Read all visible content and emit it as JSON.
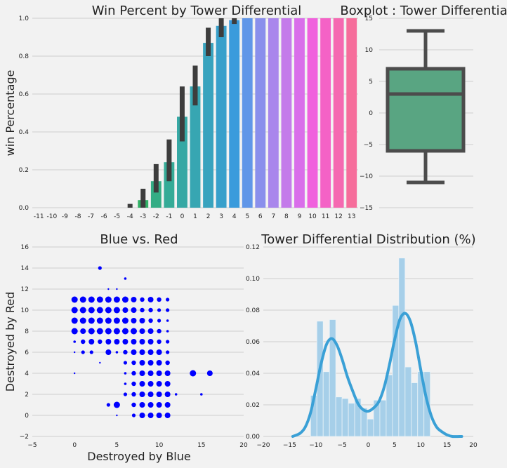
{
  "chart_data": [
    {
      "id": "win_bar",
      "type": "bar",
      "title": "Win Percent by Tower Differential",
      "xlabel": "",
      "ylabel": "win Percentage",
      "ylim": [
        0,
        1.0
      ],
      "yticks": [
        "0.0",
        "0.2",
        "0.4",
        "0.6",
        "0.8",
        "1.0"
      ],
      "categories": [
        "-11",
        "-10",
        "-9",
        "-8",
        "-7",
        "-6",
        "-5",
        "-4",
        "-3",
        "-2",
        "-1",
        "0",
        "1",
        "2",
        "3",
        "4",
        "5",
        "6",
        "7",
        "8",
        "9",
        "10",
        "11",
        "12",
        "13"
      ],
      "values": [
        0,
        0,
        0,
        0,
        0,
        0,
        0,
        0.0,
        0.04,
        0.14,
        0.24,
        0.48,
        0.64,
        0.87,
        0.96,
        0.99,
        1.0,
        1.0,
        1.0,
        1.0,
        1.0,
        1.0,
        1.0,
        1.0,
        1.0
      ],
      "ci_low": [
        null,
        null,
        null,
        null,
        null,
        null,
        null,
        0.0,
        0.0,
        0.08,
        0.14,
        0.35,
        0.54,
        0.8,
        0.9,
        0.97,
        null,
        null,
        null,
        null,
        null,
        null,
        null,
        null,
        null
      ],
      "ci_high": [
        null,
        null,
        null,
        null,
        null,
        null,
        null,
        0.02,
        0.1,
        0.23,
        0.36,
        0.64,
        0.75,
        0.95,
        1.0,
        1.0,
        null,
        null,
        null,
        null,
        null,
        null,
        null,
        null,
        null
      ],
      "colors": [
        "#f77189",
        "#f67b4b",
        "#e28c31",
        "#cb962f",
        "#b59d31",
        "#9ea631",
        "#7eae31",
        "#3fb634",
        "#32b166",
        "#34ad85",
        "#35ab97",
        "#36a8a4",
        "#37a6b2",
        "#38a3be",
        "#38a0cb",
        "#3a9bdc",
        "#6096e8",
        "#8a8fec",
        "#a986ec",
        "#c47bea",
        "#d96eea",
        "#f061dd",
        "#f462c6",
        "#f569b1",
        "#f66d9b"
      ],
      "grid": true
    },
    {
      "id": "boxplot",
      "type": "box",
      "title": "Boxplot : Tower Differential",
      "ylim": [
        -15,
        15
      ],
      "yticks": [
        "−15",
        "−10",
        "−5",
        "0",
        "5",
        "10",
        "15"
      ],
      "whisker_low": -11,
      "q1": -6,
      "median": 3,
      "q3": 7,
      "whisker_high": 13,
      "color": "#59a582",
      "grid": true
    },
    {
      "id": "scatter",
      "type": "scatter",
      "title": "Blue vs. Red",
      "xlabel": "Destroyed by Blue",
      "ylabel": "Destroyed by Red",
      "xlim": [
        -5,
        20
      ],
      "ylim": [
        -2,
        16
      ],
      "xticks": [
        "−5",
        "0",
        "5",
        "10",
        "15",
        "20"
      ],
      "yticks": [
        "−2",
        "0",
        "2",
        "4",
        "6",
        "8",
        "10",
        "12",
        "14",
        "16"
      ],
      "color": "#0000ff",
      "grid": true,
      "points": [
        [
          0,
          11,
          6
        ],
        [
          1,
          11,
          6
        ],
        [
          2,
          11,
          6
        ],
        [
          3,
          11,
          6
        ],
        [
          4,
          11,
          6
        ],
        [
          5,
          11,
          6
        ],
        [
          6,
          11,
          6
        ],
        [
          7,
          11,
          5
        ],
        [
          8,
          11,
          4
        ],
        [
          9,
          11,
          5
        ],
        [
          10,
          11,
          4
        ],
        [
          11,
          11,
          3
        ],
        [
          0,
          10,
          6
        ],
        [
          1,
          10,
          6
        ],
        [
          2,
          10,
          6
        ],
        [
          3,
          10,
          6
        ],
        [
          4,
          10,
          6
        ],
        [
          5,
          10,
          6
        ],
        [
          6,
          10,
          5
        ],
        [
          7,
          10,
          5
        ],
        [
          8,
          10,
          4
        ],
        [
          9,
          10,
          4
        ],
        [
          10,
          10,
          3
        ],
        [
          11,
          10,
          3
        ],
        [
          0,
          9,
          6
        ],
        [
          1,
          9,
          6
        ],
        [
          2,
          9,
          6
        ],
        [
          3,
          9,
          6
        ],
        [
          4,
          9,
          6
        ],
        [
          5,
          9,
          6
        ],
        [
          6,
          9,
          6
        ],
        [
          7,
          9,
          5
        ],
        [
          8,
          9,
          5
        ],
        [
          9,
          9,
          4
        ],
        [
          10,
          9,
          3
        ],
        [
          11,
          9,
          2
        ],
        [
          0,
          8,
          6
        ],
        [
          1,
          8,
          5
        ],
        [
          2,
          8,
          6
        ],
        [
          3,
          8,
          6
        ],
        [
          4,
          8,
          6
        ],
        [
          5,
          8,
          6
        ],
        [
          6,
          8,
          6
        ],
        [
          7,
          8,
          6
        ],
        [
          8,
          8,
          5
        ],
        [
          9,
          8,
          5
        ],
        [
          10,
          8,
          4
        ],
        [
          11,
          8,
          2
        ],
        [
          0,
          7,
          2
        ],
        [
          1,
          7,
          4
        ],
        [
          2,
          7,
          5
        ],
        [
          3,
          7,
          4
        ],
        [
          4,
          7,
          5
        ],
        [
          5,
          7,
          5
        ],
        [
          6,
          7,
          5
        ],
        [
          7,
          7,
          5
        ],
        [
          8,
          7,
          5
        ],
        [
          9,
          7,
          5
        ],
        [
          10,
          7,
          4
        ],
        [
          11,
          7,
          3
        ],
        [
          0,
          6,
          1
        ],
        [
          1,
          6,
          3
        ],
        [
          2,
          6,
          3
        ],
        [
          4,
          6,
          5
        ],
        [
          5,
          6,
          2
        ],
        [
          6,
          6,
          4
        ],
        [
          7,
          6,
          5
        ],
        [
          8,
          6,
          5
        ],
        [
          9,
          6,
          5
        ],
        [
          10,
          6,
          5
        ],
        [
          11,
          6,
          3
        ],
        [
          3,
          5,
          1
        ],
        [
          6,
          5,
          3
        ],
        [
          7,
          5,
          4
        ],
        [
          8,
          5,
          5
        ],
        [
          9,
          5,
          5
        ],
        [
          10,
          5,
          5
        ],
        [
          11,
          5,
          4
        ],
        [
          0,
          4,
          1
        ],
        [
          6,
          4,
          2
        ],
        [
          7,
          4,
          4
        ],
        [
          8,
          4,
          5
        ],
        [
          9,
          4,
          5
        ],
        [
          10,
          4,
          5
        ],
        [
          11,
          4,
          5
        ],
        [
          14,
          4,
          6
        ],
        [
          16,
          4,
          5
        ],
        [
          6,
          3,
          2
        ],
        [
          7,
          3,
          4
        ],
        [
          8,
          3,
          5
        ],
        [
          9,
          3,
          5
        ],
        [
          10,
          3,
          5
        ],
        [
          11,
          3,
          5
        ],
        [
          6,
          2,
          3
        ],
        [
          7,
          2,
          4
        ],
        [
          8,
          2,
          5
        ],
        [
          9,
          2,
          5
        ],
        [
          10,
          2,
          5
        ],
        [
          11,
          2,
          5
        ],
        [
          12,
          2,
          2
        ],
        [
          15,
          2,
          2
        ],
        [
          4,
          1,
          3
        ],
        [
          5,
          1,
          6
        ],
        [
          7,
          1,
          4
        ],
        [
          8,
          1,
          5
        ],
        [
          9,
          1,
          5
        ],
        [
          10,
          1,
          5
        ],
        [
          11,
          1,
          5
        ],
        [
          5,
          0,
          1
        ],
        [
          7,
          0,
          3
        ],
        [
          8,
          0,
          5
        ],
        [
          9,
          0,
          5
        ],
        [
          10,
          0,
          5
        ],
        [
          11,
          0,
          5
        ],
        [
          3,
          14,
          3
        ],
        [
          6,
          13,
          2
        ],
        [
          4,
          12,
          1
        ],
        [
          5,
          12,
          1
        ]
      ]
    },
    {
      "id": "dist",
      "type": "histogram",
      "title": "Tower Differential Distribution (%)",
      "xlim": [
        -20,
        20
      ],
      "ylim": [
        0,
        0.12
      ],
      "xticks": [
        "−20",
        "−15",
        "−10",
        "−5",
        "0",
        "5",
        "10",
        "15",
        "20"
      ],
      "yticks": [
        "0.00",
        "0.02",
        "0.04",
        "0.06",
        "0.08",
        "0.10",
        "0.12"
      ],
      "bin_edges": [
        -11,
        -9.8,
        -8.6,
        -7.4,
        -6.2,
        -5,
        -3.8,
        -2.6,
        -1.4,
        -0.2,
        1,
        2.2,
        3.4,
        4.6,
        5.8,
        7,
        8.2,
        9.4,
        10.6,
        11.8
      ],
      "heights": [
        0.026,
        0.073,
        0.041,
        0.074,
        0.025,
        0.024,
        0.021,
        0.024,
        0.018,
        0.011,
        0.023,
        0.023,
        0.039,
        0.083,
        0.113,
        0.044,
        0.034,
        0.041,
        0.041
      ],
      "kde_x": [
        -14.4,
        -13,
        -12,
        -11,
        -10,
        -9,
        -8,
        -7,
        -6,
        -5,
        -4,
        -3,
        -2,
        -1,
        0,
        1,
        2,
        3,
        4,
        5,
        6,
        7,
        8,
        9,
        10,
        11,
        12,
        13,
        14,
        15,
        16,
        17.8
      ],
      "kde_y": [
        0.0,
        0.002,
        0.006,
        0.015,
        0.03,
        0.046,
        0.058,
        0.062,
        0.058,
        0.049,
        0.038,
        0.029,
        0.021,
        0.017,
        0.016,
        0.018,
        0.022,
        0.031,
        0.045,
        0.061,
        0.074,
        0.078,
        0.073,
        0.06,
        0.042,
        0.025,
        0.013,
        0.006,
        0.003,
        0.001,
        0.0,
        0.0
      ],
      "bar_color": "#a6cfe9",
      "line_color": "#3aa0d6",
      "grid": true
    }
  ]
}
